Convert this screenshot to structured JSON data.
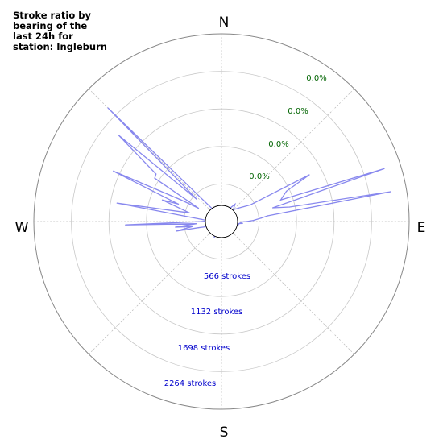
{
  "chart_data": {
    "type": "polar-line",
    "title": "Stroke ratio by bearing of the last 24h for station: Ingleburn",
    "directions": [
      "N",
      "E",
      "S",
      "W"
    ],
    "ring_percent_labels": [
      "0.0%",
      "0.0%",
      "0.0%",
      "0.0%"
    ],
    "ring_stroke_labels": [
      "566 strokes",
      "1132 strokes",
      "1698 strokes",
      "2264 strokes"
    ],
    "rmax": 2830,
    "grid": true,
    "series_color": "#8888ee",
    "series": [
      {
        "bearings": [
          0,
          10,
          20,
          30,
          38,
          45,
          52,
          60,
          62,
          65,
          70,
          72,
          75,
          78,
          80,
          83,
          85,
          88,
          90,
          92,
          95,
          98,
          100,
          110,
          120,
          130,
          140,
          150,
          160,
          170,
          180,
          190,
          200,
          205,
          210,
          215,
          220,
          230,
          240,
          245,
          248,
          252,
          255,
          258,
          260,
          263,
          265,
          268,
          270,
          273,
          276,
          280,
          285,
          290,
          292,
          295,
          298,
          300,
          303,
          306,
          310,
          312,
          315,
          320,
          325,
          330,
          340,
          350
        ],
        "values": [
          180,
          190,
          200,
          210,
          330,
          250,
          330,
          500,
          1500,
          1080,
          950,
          2580,
          800,
          1050,
          2590,
          700,
          600,
          480,
          380,
          270,
          320,
          230,
          260,
          220,
          200,
          190,
          180,
          180,
          180,
          180,
          180,
          190,
          200,
          260,
          180,
          200,
          180,
          180,
          170,
          210,
          180,
          260,
          360,
          700,
          450,
          700,
          380,
          1450,
          300,
          200,
          300,
          1600,
          500,
          950,
          700,
          1800,
          700,
          400,
          1200,
          1220,
          2030,
          500,
          2420,
          400,
          220,
          250,
          200,
          180
        ]
      }
    ]
  }
}
